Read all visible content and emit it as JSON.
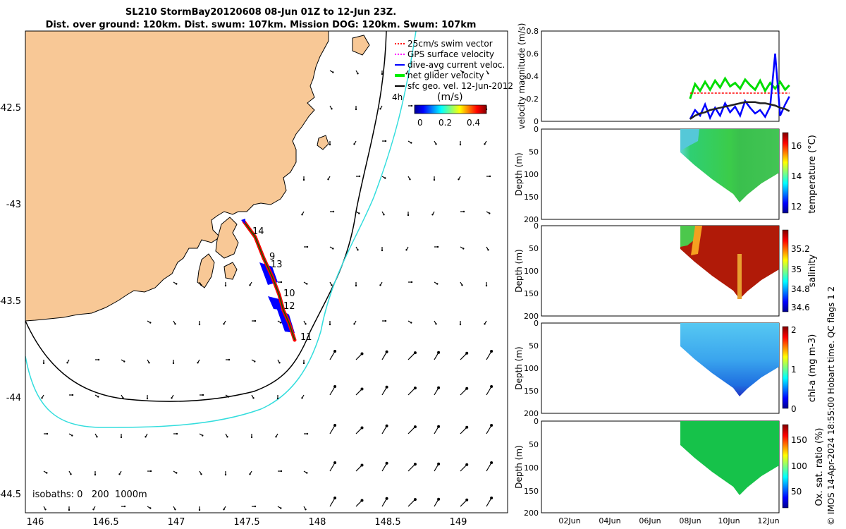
{
  "header": {
    "title": "SL210 StormBay20120608 08-Jun 01Z to 12-Jun 23Z.",
    "subtitle": "Dist. over ground: 120km. Dist. swum: 107km. Mission DOG: 120km. Swum: 107km"
  },
  "credit": "© IMOS 14-Apr-2024 18:55:00 Hobart time. QC flags 1  2",
  "map": {
    "lon_ticks": [
      "146",
      "146.5",
      "147",
      "147.5",
      "148",
      "148.5",
      "149"
    ],
    "lat_ticks": [
      "-42.5",
      "-43",
      "-43.5",
      "-44",
      "-44.5"
    ],
    "isobaths_label": "isobaths: 0   200  1000m",
    "legend": [
      {
        "label": "25cm/s swim vector",
        "color": "#ff0000"
      },
      {
        "label": "GPS surface velocity",
        "color": "#ff00ff"
      },
      {
        "label": "dive-avg current veloc.",
        "color": "#0000ff"
      },
      {
        "label": "net glider velocity",
        "color": "#00ee00"
      },
      {
        "label": "sfc geo. vel. 12-Jun-2012",
        "color": "#000000"
      }
    ],
    "hour_label": "4h",
    "colorbar": {
      "title": "(m/s)",
      "ticks": [
        "0",
        "0.2",
        "0.4"
      ]
    },
    "day_labels": [
      "14",
      "9",
      "13",
      "10",
      "12",
      "11"
    ],
    "colors": {
      "land": "#f8c896",
      "isobath_200": "#000000",
      "isobath_1000": "#33dddd",
      "track": "#ff0000",
      "currents": "#0000ff"
    }
  },
  "chart_data": [
    {
      "type": "line",
      "ylabel": "velocity magnitude (m/s)",
      "ylim": [
        0,
        0.8
      ],
      "yticks": [
        "0",
        "0.2",
        "0.4",
        "0.6",
        "0.8"
      ],
      "x_days": [
        8.0,
        8.25,
        8.5,
        8.75,
        9.0,
        9.25,
        9.5,
        9.75,
        10.0,
        10.25,
        10.5,
        10.75,
        11.0,
        11.25,
        11.5,
        11.75,
        12.0,
        12.25,
        12.5,
        12.75,
        12.96
      ],
      "series": [
        {
          "name": "net glider velocity",
          "color": "#00dd00",
          "values": [
            0.2,
            0.33,
            0.27,
            0.35,
            0.28,
            0.36,
            0.3,
            0.38,
            0.31,
            0.34,
            0.29,
            0.37,
            0.32,
            0.28,
            0.36,
            0.27,
            0.34,
            0.29,
            0.35,
            0.28,
            0.32
          ]
        },
        {
          "name": "swim vector",
          "color": "#ff0000",
          "values": [
            0.25,
            0.25,
            0.25,
            0.25,
            0.25,
            0.25,
            0.25,
            0.25,
            0.25,
            0.25,
            0.25,
            0.25,
            0.25,
            0.25,
            0.25,
            0.25,
            0.25,
            0.25,
            0.25,
            0.25,
            0.25
          ]
        },
        {
          "name": "dive-avg current veloc.",
          "color": "#0000ff",
          "values": [
            0.02,
            0.1,
            0.05,
            0.15,
            0.03,
            0.12,
            0.05,
            0.16,
            0.08,
            0.13,
            0.05,
            0.18,
            0.12,
            0.07,
            0.1,
            0.04,
            0.13,
            0.6,
            0.05,
            0.15,
            0.22
          ]
        },
        {
          "name": "sfc geo. vel.",
          "color": "#222222",
          "values": [
            0.02,
            0.05,
            0.07,
            0.08,
            0.1,
            0.11,
            0.12,
            0.13,
            0.14,
            0.15,
            0.16,
            0.17,
            0.17,
            0.17,
            0.16,
            0.16,
            0.15,
            0.14,
            0.12,
            0.11,
            0.09
          ]
        }
      ]
    },
    {
      "type": "heatmap",
      "ylabel": "Depth (m)",
      "cbar_label": "temperature (°C)",
      "cbar_ticks": [
        "12",
        "14",
        "16"
      ],
      "ylim": [
        200,
        0
      ],
      "yticks": [
        "0",
        "50",
        "100",
        "150",
        "200"
      ],
      "value_range": [
        11.2,
        17.0
      ],
      "dominant_value": 14.2
    },
    {
      "type": "heatmap",
      "ylabel": "Depth (m)",
      "cbar_label": "salinity",
      "cbar_ticks": [
        "34.6",
        "34.8",
        "35",
        "35.2"
      ],
      "ylim": [
        200,
        0
      ],
      "yticks": [
        "0",
        "50",
        "100",
        "150",
        "200"
      ],
      "value_range": [
        34.5,
        35.35
      ],
      "dominant_value": 35.3
    },
    {
      "type": "heatmap",
      "ylabel": "Depth (m)",
      "cbar_label": "chl-a (mg m-3)",
      "cbar_ticks": [
        "0",
        "1",
        "2"
      ],
      "ylim": [
        200,
        0
      ],
      "yticks": [
        "0",
        "50",
        "100",
        "150",
        "200"
      ],
      "value_range": [
        0,
        2
      ],
      "dominant_value": 0.6
    },
    {
      "type": "heatmap",
      "ylabel": "Depth (m)",
      "cbar_label": "Ox. sat. ratio (%)",
      "cbar_ticks": [
        "50",
        "100",
        "150"
      ],
      "ylim": [
        200,
        0
      ],
      "yticks": [
        "0",
        "50",
        "100",
        "150",
        "200"
      ],
      "value_range": [
        25,
        175
      ],
      "dominant_value": 100,
      "xticks": [
        "02Jun",
        "04Jun",
        "06Jun",
        "08Jun",
        "10Jun",
        "12Jun"
      ]
    }
  ]
}
